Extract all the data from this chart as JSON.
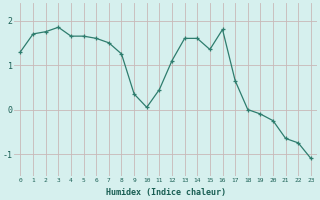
{
  "x": [
    0,
    1,
    2,
    3,
    4,
    5,
    6,
    7,
    8,
    9,
    10,
    11,
    12,
    13,
    14,
    15,
    16,
    17,
    18,
    19,
    20,
    21,
    22,
    23
  ],
  "y": [
    1.3,
    1.7,
    1.75,
    1.85,
    1.65,
    1.65,
    1.6,
    1.5,
    1.25,
    0.35,
    0.05,
    0.45,
    1.1,
    1.6,
    1.6,
    1.35,
    1.8,
    0.65,
    0.0,
    -0.1,
    -0.25,
    -0.65,
    -0.75,
    -1.1
  ],
  "xlabel": "Humidex (Indice chaleur)",
  "xlim": [
    -0.5,
    23.5
  ],
  "ylim": [
    -1.5,
    2.4
  ],
  "yticks": [
    -1,
    0,
    1,
    2
  ],
  "xticks": [
    0,
    1,
    2,
    3,
    4,
    5,
    6,
    7,
    8,
    9,
    10,
    11,
    12,
    13,
    14,
    15,
    16,
    17,
    18,
    19,
    20,
    21,
    22,
    23
  ],
  "line_color": "#2e7d6e",
  "marker_color": "#2e7d6e",
  "bg_color": "#d6f0ee",
  "grid_color": "#c8b8b8",
  "font_family": "monospace"
}
